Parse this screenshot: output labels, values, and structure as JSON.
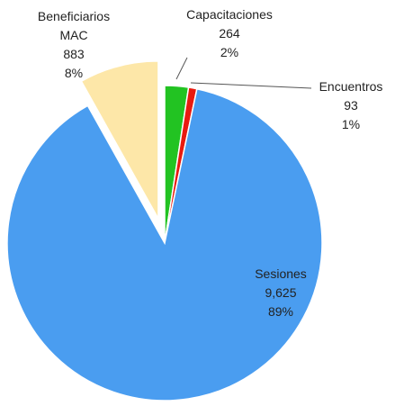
{
  "chart_data": {
    "type": "pie",
    "categories": [
      "Capacitaciones",
      "Encuentros",
      "Sesiones",
      "Beneficiarios\nMAC"
    ],
    "values": [
      264,
      93,
      9625,
      883
    ],
    "value_labels": [
      "264",
      "93",
      "9,625",
      "883"
    ],
    "percentages": [
      2,
      1,
      89,
      8
    ],
    "percentage_labels": [
      "2%",
      "1%",
      "89%",
      "8%"
    ],
    "colors": [
      "#22c322",
      "#e81a10",
      "#4a9df0",
      "#fde7a8"
    ],
    "exploded": [
      false,
      false,
      false,
      true
    ]
  }
}
